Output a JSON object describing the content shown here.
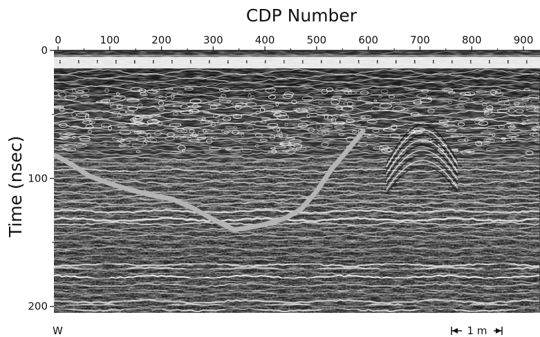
{
  "chart_data": {
    "type": "heatmap",
    "title": "CDP Number",
    "xlabel": "",
    "ylabel": "Time  (nsec)",
    "x_ticks": [
      0,
      100,
      200,
      300,
      400,
      500,
      600,
      700,
      800,
      900
    ],
    "y_ticks": [
      0,
      100,
      200
    ],
    "xlim": [
      -8,
      932
    ],
    "ylim": [
      0,
      205
    ],
    "y_inverted": true,
    "grid": false,
    "colormap": "grayscale",
    "annotations": {
      "left_direction": "W",
      "scale_bar": "1 m"
    },
    "overlay": {
      "type": "line",
      "color": "#b4b4b4",
      "x": [
        -5,
        30,
        60,
        100,
        140,
        180,
        220,
        260,
        300,
        340,
        360,
        400,
        440,
        470,
        500,
        530,
        560,
        590
      ],
      "y": [
        82,
        90,
        98,
        104,
        109,
        113,
        116,
        123,
        132,
        140,
        139,
        136,
        131,
        124,
        110,
        92,
        78,
        63
      ]
    },
    "features": {
      "diffraction_hyperbola_cdp": 705
    }
  }
}
